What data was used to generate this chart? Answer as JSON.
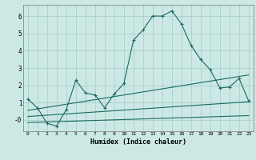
{
  "xlabel": "Humidex (Indice chaleur)",
  "bg_color": "#cce8e4",
  "grid_color": "#aacfcb",
  "line_color": "#1a6b60",
  "xlim": [
    -0.5,
    23.5
  ],
  "ylim": [
    -0.65,
    6.65
  ],
  "xticks": [
    0,
    1,
    2,
    3,
    4,
    5,
    6,
    7,
    8,
    9,
    10,
    11,
    12,
    13,
    14,
    15,
    16,
    17,
    18,
    19,
    20,
    21,
    22,
    23
  ],
  "yticks": [
    0,
    1,
    2,
    3,
    4,
    5,
    6
  ],
  "ytick_labels": [
    "-0",
    "1",
    "2",
    "3",
    "4",
    "5",
    "6"
  ],
  "series": [
    {
      "x": [
        0,
        1,
        2,
        3,
        4,
        5,
        6,
        7,
        8,
        9,
        10,
        11,
        12,
        13,
        14,
        15,
        16,
        17,
        18,
        19,
        20,
        21,
        22,
        23
      ],
      "y": [
        1.2,
        0.7,
        -0.2,
        -0.35,
        0.6,
        2.3,
        1.55,
        1.45,
        0.7,
        1.5,
        2.1,
        4.6,
        5.2,
        6.0,
        6.0,
        6.3,
        5.55,
        4.3,
        3.5,
        2.9,
        1.85,
        1.9,
        2.4,
        1.1
      ],
      "marker": true
    },
    {
      "x": [
        0,
        23
      ],
      "y": [
        0.55,
        2.6
      ],
      "marker": false
    },
    {
      "x": [
        0,
        23
      ],
      "y": [
        0.2,
        1.05
      ],
      "marker": false
    },
    {
      "x": [
        0,
        23
      ],
      "y": [
        -0.15,
        0.25
      ],
      "marker": false
    }
  ]
}
